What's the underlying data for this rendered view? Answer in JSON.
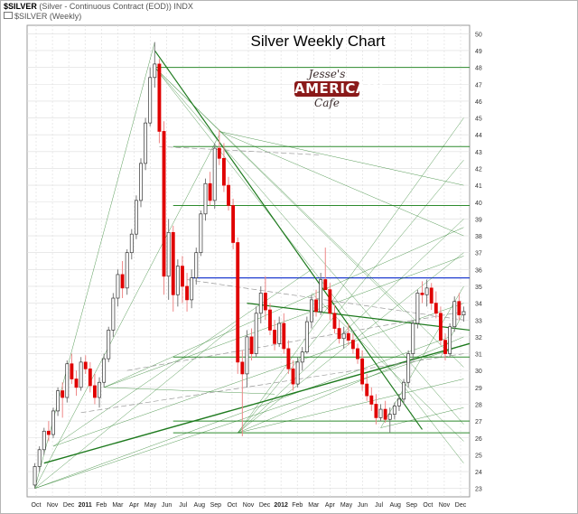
{
  "header": {
    "symbol": "$SILVER",
    "description": "(Silver - Continuous Contract (EOD))",
    "exchange": "INDX",
    "series_label": "$SILVER (Weekly)"
  },
  "logo": {
    "line1": "Jesse's",
    "line2": "AMERICAIN",
    "line3": "Cafe"
  },
  "colors": {
    "up": "#ffffff",
    "down": "#e00000",
    "wick": "#7a7a7a",
    "trend": "#1e7a1e",
    "grid_hline": "#2e8b2e",
    "blue_line": "#1f3ccf",
    "grid": "#dcdcdc"
  },
  "chart_data": {
    "type": "candlestick",
    "title": "Silver Weekly Chart",
    "timeframe": "Weekly",
    "ylim": [
      22.5,
      50.5
    ],
    "y_ticks": [
      23,
      24,
      25,
      26,
      27,
      28,
      29,
      30,
      31,
      32,
      33,
      34,
      35,
      36,
      37,
      38,
      39,
      40,
      41,
      42,
      43,
      44,
      45,
      46,
      47,
      48,
      49,
      50
    ],
    "x_tick_labels": [
      "Oct",
      "Nov",
      "Dec",
      "2011",
      "Feb",
      "Mar",
      "Apr",
      "May",
      "Jun",
      "Jul",
      "Aug",
      "Sep",
      "Oct",
      "Nov",
      "Dec",
      "2012",
      "Feb",
      "Mar",
      "Apr",
      "May",
      "Jun",
      "Jul",
      "Aug",
      "Sep",
      "Oct",
      "Nov",
      "Dec"
    ],
    "annotations": {
      "horizontal_levels": [
        48,
        43.3,
        39.8,
        30.8,
        27,
        26.3
      ],
      "resistance_line": 35.5
    },
    "ohlc": [
      [
        23.2,
        24.5,
        23.0,
        24.3
      ],
      [
        24.3,
        25.5,
        24.0,
        25.3
      ],
      [
        25.3,
        26.6,
        25.0,
        26.4
      ],
      [
        26.4,
        27.0,
        25.8,
        26.2
      ],
      [
        26.2,
        27.8,
        26.0,
        27.6
      ],
      [
        27.6,
        29.0,
        27.3,
        28.8
      ],
      [
        28.8,
        29.3,
        27.2,
        28.4
      ],
      [
        28.4,
        30.6,
        28.1,
        30.4
      ],
      [
        30.4,
        31.0,
        29.2,
        29.5
      ],
      [
        29.5,
        30.0,
        28.5,
        29.0
      ],
      [
        29.0,
        30.8,
        28.8,
        30.5
      ],
      [
        30.5,
        30.9,
        29.8,
        30.1
      ],
      [
        30.1,
        30.5,
        28.7,
        29.1
      ],
      [
        29.1,
        29.8,
        28.0,
        28.4
      ],
      [
        28.4,
        29.6,
        27.8,
        29.3
      ],
      [
        29.3,
        31.0,
        29.0,
        30.7
      ],
      [
        30.7,
        32.6,
        30.5,
        32.4
      ],
      [
        32.4,
        34.6,
        32.0,
        34.3
      ],
      [
        34.3,
        36.0,
        33.8,
        35.7
      ],
      [
        35.7,
        36.5,
        34.3,
        34.9
      ],
      [
        34.9,
        37.2,
        34.5,
        37.0
      ],
      [
        37.0,
        38.4,
        36.6,
        38.1
      ],
      [
        38.1,
        40.4,
        37.8,
        40.1
      ],
      [
        40.1,
        42.6,
        39.7,
        42.3
      ],
      [
        42.3,
        45.0,
        41.9,
        44.7
      ],
      [
        44.7,
        48.0,
        44.5,
        47.4
      ],
      [
        47.4,
        49.5,
        46.8,
        48.2
      ],
      [
        48.2,
        48.5,
        43.5,
        44.2
      ],
      [
        44.2,
        44.8,
        34.5,
        35.6
      ],
      [
        35.6,
        39.0,
        34.2,
        38.2
      ],
      [
        38.2,
        38.6,
        33.5,
        34.5
      ],
      [
        34.5,
        36.6,
        33.8,
        36.2
      ],
      [
        36.2,
        36.8,
        34.0,
        35.0
      ],
      [
        35.0,
        35.8,
        33.5,
        34.2
      ],
      [
        34.2,
        36.0,
        33.7,
        35.5
      ],
      [
        35.5,
        37.3,
        35.1,
        37.0
      ],
      [
        37.0,
        39.5,
        36.8,
        39.3
      ],
      [
        39.3,
        41.4,
        38.9,
        41.1
      ],
      [
        41.1,
        41.8,
        39.8,
        40.1
      ],
      [
        40.1,
        43.5,
        39.6,
        43.2
      ],
      [
        43.2,
        44.3,
        42.2,
        42.6
      ],
      [
        42.6,
        43.5,
        40.6,
        41.0
      ],
      [
        41.0,
        41.5,
        39.5,
        39.8
      ],
      [
        39.8,
        40.2,
        37.2,
        37.6
      ],
      [
        37.6,
        37.9,
        29.8,
        30.5
      ],
      [
        30.5,
        31.2,
        26.1,
        29.8
      ],
      [
        29.8,
        32.4,
        29.0,
        32.0
      ],
      [
        32.0,
        32.5,
        30.6,
        31.0
      ],
      [
        31.0,
        33.8,
        30.8,
        33.4
      ],
      [
        33.4,
        35.0,
        32.8,
        34.6
      ],
      [
        34.6,
        35.6,
        33.0,
        33.6
      ],
      [
        33.6,
        34.0,
        32.1,
        32.4
      ],
      [
        32.4,
        33.0,
        31.2,
        31.6
      ],
      [
        31.6,
        33.2,
        31.4,
        32.8
      ],
      [
        32.8,
        33.4,
        31.0,
        31.3
      ],
      [
        31.3,
        31.8,
        29.8,
        30.1
      ],
      [
        30.1,
        30.6,
        28.8,
        29.2
      ],
      [
        29.2,
        30.8,
        29.0,
        30.5
      ],
      [
        30.5,
        31.4,
        30.0,
        31.1
      ],
      [
        31.1,
        33.2,
        31.0,
        32.9
      ],
      [
        32.9,
        34.5,
        32.5,
        34.2
      ],
      [
        34.2,
        34.8,
        33.2,
        33.5
      ],
      [
        33.5,
        35.8,
        33.3,
        35.4
      ],
      [
        35.4,
        37.3,
        35.0,
        34.8
      ],
      [
        34.8,
        35.2,
        33.0,
        33.4
      ],
      [
        33.4,
        33.9,
        32.2,
        32.5
      ],
      [
        32.5,
        33.0,
        31.6,
        31.9
      ],
      [
        31.9,
        32.6,
        31.3,
        32.2
      ],
      [
        32.2,
        32.8,
        31.5,
        31.8
      ],
      [
        31.8,
        32.2,
        31.0,
        31.3
      ],
      [
        31.3,
        31.6,
        30.4,
        30.7
      ],
      [
        30.7,
        31.2,
        28.8,
        29.2
      ],
      [
        29.2,
        29.8,
        28.2,
        28.5
      ],
      [
        28.5,
        29.0,
        27.6,
        28.0
      ],
      [
        28.0,
        28.6,
        26.8,
        27.2
      ],
      [
        27.2,
        28.0,
        27.0,
        27.7
      ],
      [
        27.7,
        28.2,
        26.9,
        27.1
      ],
      [
        27.1,
        27.8,
        26.3,
        27.4
      ],
      [
        27.4,
        28.1,
        27.1,
        27.9
      ],
      [
        27.9,
        28.6,
        27.6,
        28.3
      ],
      [
        28.3,
        29.5,
        28.0,
        29.3
      ],
      [
        29.3,
        31.2,
        29.0,
        31.0
      ],
      [
        31.0,
        33.0,
        30.6,
        32.8
      ],
      [
        32.8,
        34.8,
        32.5,
        34.6
      ],
      [
        34.6,
        35.3,
        34.0,
        34.5
      ],
      [
        34.5,
        35.4,
        33.8,
        34.9
      ],
      [
        34.9,
        35.2,
        33.6,
        34.0
      ],
      [
        34.0,
        34.7,
        33.1,
        33.4
      ],
      [
        33.4,
        33.8,
        31.5,
        31.8
      ],
      [
        31.8,
        32.2,
        30.6,
        31.0
      ],
      [
        31.0,
        32.8,
        30.8,
        32.6
      ],
      [
        32.6,
        34.4,
        32.3,
        34.1
      ],
      [
        34.1,
        34.6,
        33.0,
        33.3
      ],
      [
        33.3,
        33.8,
        32.9,
        33.5
      ]
    ]
  }
}
